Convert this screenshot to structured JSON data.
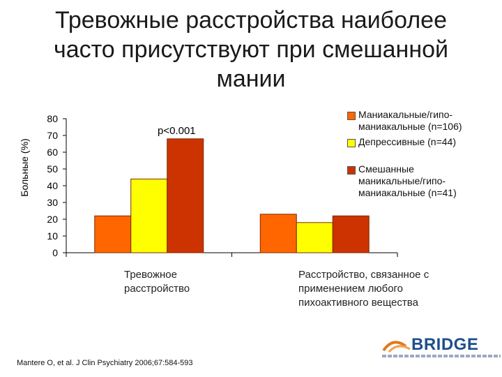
{
  "title": "Тревожные расстройства наиболее\nчасто присутствуют при смешанной\nмании",
  "chart_data": {
    "type": "bar",
    "ylabel": "Больные (%)",
    "ylim": [
      0,
      80
    ],
    "yticks": [
      "80",
      "70",
      "60",
      "50",
      "40",
      "30",
      "20",
      "10",
      "0"
    ],
    "annotation": "p<0.001",
    "categories": [
      "Тревожное\nрасстройство",
      "Расстройство, связанное с\n применением любого\nпихоактивного вещества"
    ],
    "series": [
      {
        "name": "Маниакальные/гипо-\nманиакальные (n=106)",
        "color": "#ff6600",
        "values": [
          22,
          23
        ]
      },
      {
        "name": "Депрессивные  (n=44)",
        "color": "#ffff00",
        "values": [
          44,
          18
        ]
      },
      {
        "name": "Смешанные\nманикальные/гипо-\nманиакальные (n=41)",
        "color": "#cc3300",
        "values": [
          68,
          22
        ]
      }
    ]
  },
  "citation": "Mantere O, et al. J Clin Psychiatry 2006;67:584-593",
  "logo": {
    "text": "BRIDGE"
  }
}
